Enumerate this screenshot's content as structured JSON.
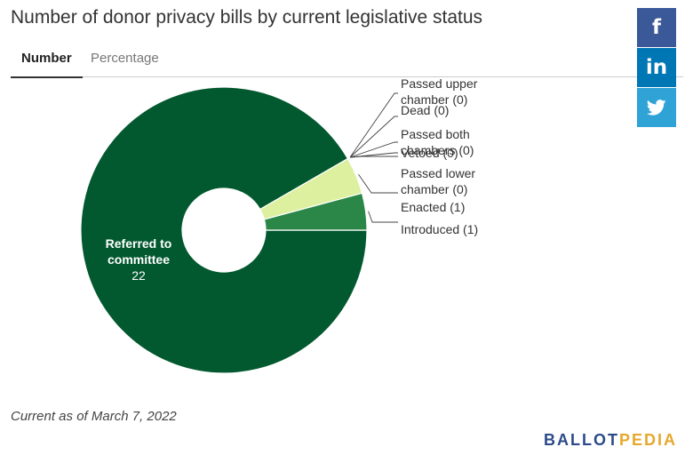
{
  "header": {
    "tab_number": "Number",
    "tab_percentage": "Percentage"
  },
  "share": {
    "facebook_icon": "facebook-icon",
    "linkedin_icon": "linkedin-icon",
    "twitter_icon": "twitter-icon",
    "colors": {
      "facebook": "#3b5998",
      "linkedin": "#0077b5",
      "twitter": "#2fa3d6"
    }
  },
  "chart_data": {
    "type": "pie",
    "variant": "donut",
    "title": "Number of donor privacy bills by current legislative status",
    "slices": [
      {
        "label": "Referred to committee",
        "value": 22,
        "color": "#03592f",
        "label_text": [
          "Referred to",
          "committee"
        ],
        "value_text": "22"
      },
      {
        "label": "Introduced",
        "value": 1,
        "color": "#2a8748",
        "label_text": [
          "Introduced (1)"
        ]
      },
      {
        "label": "Enacted",
        "value": 1,
        "color": "#dcf0a0",
        "label_text": [
          "Enacted (1)"
        ]
      },
      {
        "label": "Passed lower chamber",
        "value": 0,
        "color": "#888888",
        "label_text": [
          "Passed lower",
          "chamber (0)"
        ]
      },
      {
        "label": "Vetoed",
        "value": 0,
        "color": "#888888",
        "label_text": [
          "Vetoed (0)"
        ]
      },
      {
        "label": "Passed both chambers",
        "value": 0,
        "color": "#888888",
        "label_text": [
          "Passed both",
          "chambers (0)"
        ]
      },
      {
        "label": "Dead",
        "value": 0,
        "color": "#888888",
        "label_text": [
          "Dead (0)"
        ]
      },
      {
        "label": "Passed upper chamber",
        "value": 0,
        "color": "#888888",
        "label_text": [
          "Passed upper",
          "chamber (0)"
        ]
      }
    ]
  },
  "footer": {
    "note": "Current as of March 7, 2022",
    "brand_part1": "BALLOT",
    "brand_part2": "PEDIA"
  }
}
